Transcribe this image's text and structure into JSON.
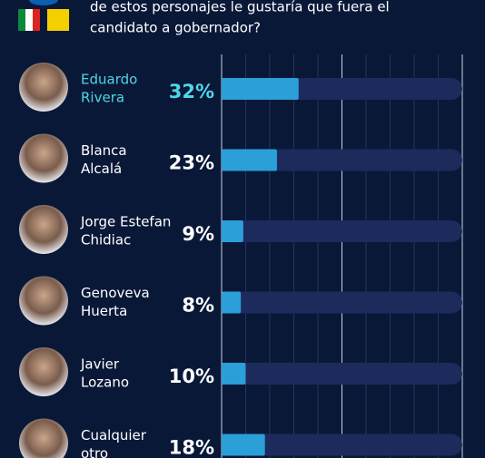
{
  "chart_data": {
    "type": "bar",
    "subtitle_lines": [
      "de estos personajes le gustaría que fuera el",
      "candidato a gobernador?"
    ],
    "categories": [
      [
        "Eduardo",
        "Rivera"
      ],
      [
        "Blanca",
        "Alcalá"
      ],
      [
        "Jorge Estefan",
        "Chidiac"
      ],
      [
        "Genoveva",
        "Huerta"
      ],
      [
        "Javier",
        "Lozano"
      ],
      [
        "Cualquier",
        "otro"
      ]
    ],
    "values": [
      32,
      23,
      9,
      8,
      10,
      18
    ],
    "value_labels": [
      "32%",
      "23%",
      "9%",
      "8%",
      "10%",
      "18%"
    ],
    "color": "#2a9fd8",
    "track_color": "#1d2a5c",
    "highlight_index": 0,
    "highlight_color": "#4fd6e6",
    "label_color": "#ffffff",
    "xlim": [
      0,
      100
    ],
    "xticks": [
      0,
      10,
      20,
      30,
      40,
      50,
      60,
      70,
      80,
      90,
      100
    ],
    "grid": true
  }
}
